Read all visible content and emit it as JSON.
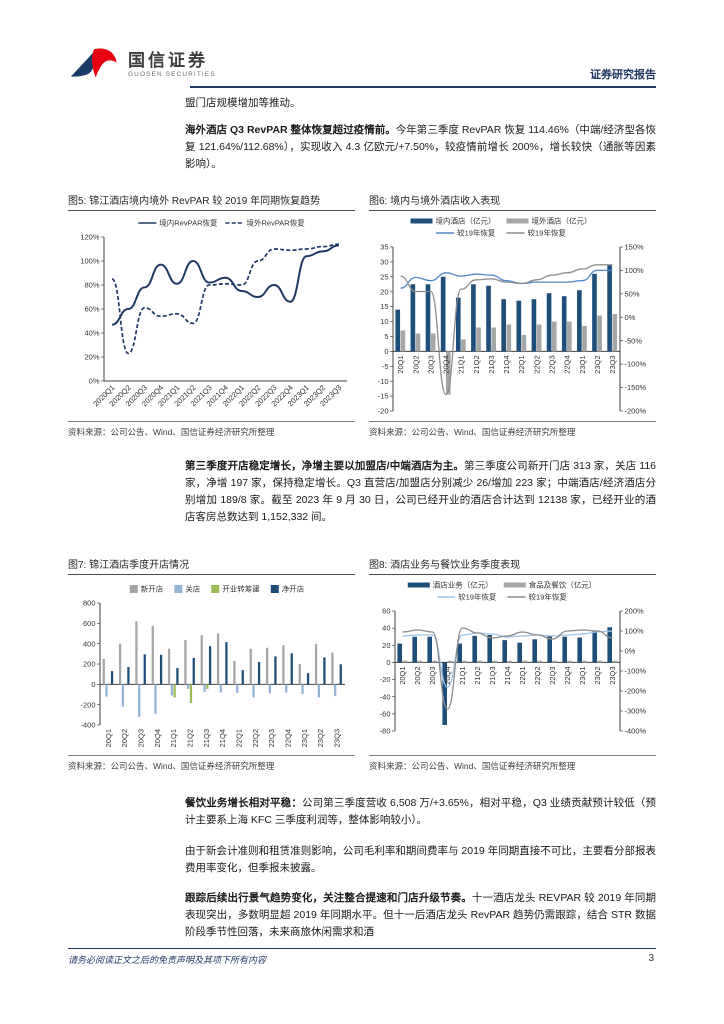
{
  "page": {
    "header": {
      "brand_cn": "国信证券",
      "brand_en": "GUOSEN SECURITIES",
      "report_label": "证券研究报告",
      "brand_navy": "#1B3A66",
      "brand_red": "#E60012"
    },
    "paragraphs": {
      "p1": "盟门店规模增加等推动。",
      "p2_bold": "海外酒店 Q3 RevPAR 整体恢复超过疫情前。",
      "p2_rest": "今年第三季度 RevPAR 恢复 114.46%（中端/经济型各恢复 121.64%/112.68%），实现收入 4.3 亿欧元/+7.50%，较疫情前增长 200%，增长较快（通胀等因素影响）。",
      "p3_bold": "第三季度开店稳定增长，净增主要以加盟店/中端酒店为主。",
      "p3_rest": "第三季度公司新开门店 313 家，关店 116 家，净增 197 家，保持稳定增长。Q3 直营店/加盟店分别减少 26/增加 223 家；中端酒店/经济酒店分别增加 189/8 家。截至 2023 年 9 月 30 日，公司已经开业的酒店合计达到 12138 家，已经开业的酒店客房总数达到 1,152,332 间。",
      "p4_bold": "餐饮业务增长相对平稳：",
      "p4_rest": "公司第三季度营收 6,508 万/+3.65%，相对平稳，Q3 业绩贡献预计较低（预计主要系上海 KFC 三季度利润等，整体影响较小）。",
      "p5": "由于新会计准则和租赁准则影响，公司毛利率和期间费率与 2019 年同期直接不可比，主要看分部报表费用率变化，但季报未披露。",
      "p6_bold": "跟踪后续出行景气趋势变化，关注整合提速和门店升级节奏。",
      "p6_rest": "十一酒店龙头 REVPAR 较 2019 年同期表现突出，多数明显超 2019 年同期水平。但十一后酒店龙头 RevPAR 趋势仍需跟踪，结合 STR 数据阶段季节性回落，未来商旅休闲需求和酒"
    },
    "figures": [
      {
        "title": "图5: 锦江酒店境内境外 RevPAR 较 2019 年同期恢复趋势",
        "source": "资料来源：公司公告、Wind、国信证券经济研究所整理"
      },
      {
        "title": "图6: 境内与境外酒店收入表现",
        "source": "资料来源：公司公告、Wind、国信证券经济研究所整理"
      },
      {
        "title": "图7: 锦江酒店季度开店情况",
        "source": "资料来源：公司公告、Wind、国信证券经济研究所整理"
      },
      {
        "title": "图8: 酒店业务与餐饮业务季度表现",
        "source": "资料来源：公司公告、Wind、国信证券经济研究所整理"
      }
    ],
    "footer": {
      "disclaimer": "请务必阅读正文之后的免责声明及其项下所有内容",
      "page_number": "3"
    }
  },
  "chart_data": [
    {
      "type": "line",
      "title": "锦江酒店境内境外RevPAR较2019年同期恢复趋势",
      "categories": [
        "2020Q1",
        "2020Q2",
        "2020Q3",
        "2020Q4",
        "2021Q1",
        "2021Q2",
        "2021Q3",
        "2021Q4",
        "2022Q1",
        "2022Q2",
        "2022Q3",
        "2022Q4",
        "2023Q1",
        "2023Q2",
        "2023Q3"
      ],
      "left_axis": {
        "min": 0,
        "max": 120,
        "step": 20,
        "ticks": [
          "0%",
          "20%",
          "40%",
          "60%",
          "80%",
          "100%",
          "120%"
        ]
      },
      "series": [
        {
          "name": "境内RevPAR恢复",
          "type": "line",
          "axis": "left",
          "color": "#1F3864",
          "dash": false,
          "w": 2,
          "values": [
            47,
            60,
            78,
            97,
            81,
            100,
            82,
            86,
            75,
            70,
            80,
            66,
            104,
            108,
            113
          ]
        },
        {
          "name": "境外RevPAR恢复",
          "type": "line",
          "axis": "left",
          "color": "#1F3864",
          "dash": true,
          "w": 1.7,
          "values": [
            85,
            23,
            61,
            54,
            56,
            48,
            80,
            81,
            80,
            100,
            110,
            109,
            110,
            112,
            114
          ]
        }
      ],
      "legend_rows": [
        [
          0,
          1
        ]
      ]
    },
    {
      "type": "bar-line-combo",
      "title": "境内与境外酒店收入表现",
      "categories": [
        "20Q1",
        "20Q2",
        "20Q3",
        "20Q4",
        "21Q1",
        "21Q2",
        "21Q3",
        "21Q4",
        "22Q1",
        "22Q2",
        "22Q3",
        "22Q4",
        "23Q1",
        "23Q2",
        "23Q3"
      ],
      "left_axis": {
        "min": -20,
        "max": 35,
        "step": 5,
        "ticks": [
          "-20",
          "-15",
          "-10",
          "-5",
          "0",
          "5",
          "10",
          "15",
          "20",
          "25",
          "30",
          "35"
        ]
      },
      "right_axis": {
        "min": -200,
        "max": 150,
        "step": 50,
        "ticks": [
          "-200%",
          "-150%",
          "-100%",
          "-50%",
          "0%",
          "50%",
          "100%",
          "150%"
        ]
      },
      "series": [
        {
          "name": "境内酒店（亿元）",
          "type": "bar",
          "axis": "left",
          "color": "#1F4E79",
          "values": [
            14,
            22.5,
            22.5,
            25,
            18,
            22.5,
            22,
            17.5,
            17,
            17.5,
            19.5,
            18.5,
            20.5,
            26,
            29
          ]
        },
        {
          "name": "境外酒店（亿元）",
          "type": "bar",
          "axis": "left",
          "color": "#A6A6A6",
          "values": [
            7,
            6,
            6,
            -14.5,
            4,
            8,
            8,
            9,
            5.5,
            9,
            10,
            10,
            8.5,
            12,
            12.5
          ]
        },
        {
          "name": "较19年恢复",
          "type": "line",
          "axis": "right",
          "color": "#4E87C6",
          "dash": false,
          "values": [
            62,
            85,
            78,
            95,
            88,
            92,
            90,
            78,
            72,
            75,
            75,
            75,
            78,
            100,
            100
          ]
        },
        {
          "name": "较19年恢复",
          "type": "line",
          "axis": "right",
          "color": "#8C8C8C",
          "dash": false,
          "values": [
            88,
            55,
            55,
            -165,
            60,
            80,
            82,
            75,
            72,
            80,
            90,
            95,
            103,
            112,
            112
          ]
        }
      ],
      "legend_rows": [
        [
          0,
          1
        ],
        [
          2,
          3
        ]
      ]
    },
    {
      "type": "bar",
      "title": "锦江酒店季度开店情况",
      "categories": [
        "20Q1",
        "20Q2",
        "20Q3",
        "20Q4",
        "21Q1",
        "21Q2",
        "21Q3",
        "21Q4",
        "22Q1",
        "22Q2",
        "22Q3",
        "22Q4",
        "23Q1",
        "23Q2",
        "23Q3"
      ],
      "left_axis": {
        "min": -400,
        "max": 800,
        "step": 200,
        "ticks": [
          "-400",
          "-200",
          "0",
          "200",
          "400",
          "600",
          "800"
        ]
      },
      "series": [
        {
          "name": "新开店",
          "type": "bar",
          "axis": "left",
          "color": "#A6A6A6",
          "values": [
            250,
            400,
            620,
            575,
            350,
            435,
            485,
            500,
            230,
            350,
            360,
            385,
            200,
            395,
            313
          ]
        },
        {
          "name": "关店",
          "type": "bar",
          "axis": "left",
          "color": "#95B3D7",
          "values": [
            -120,
            -220,
            -320,
            -290,
            -110,
            -45,
            -75,
            -80,
            -85,
            -130,
            -90,
            -80,
            -95,
            -130,
            -116
          ]
        },
        {
          "name": "开业转筹建",
          "type": "bar",
          "axis": "left",
          "color": "#9BBB59",
          "values": [
            null,
            null,
            null,
            null,
            -130,
            -185,
            -45,
            null,
            null,
            null,
            null,
            null,
            null,
            null,
            null
          ]
        },
        {
          "name": "净开店",
          "type": "bar",
          "axis": "left",
          "color": "#1F4E79",
          "values": [
            130,
            170,
            295,
            290,
            160,
            260,
            375,
            415,
            140,
            220,
            275,
            305,
            110,
            265,
            197
          ]
        }
      ],
      "legend_rows": [
        [
          0,
          1,
          2,
          3
        ]
      ]
    },
    {
      "type": "bar-line-combo",
      "title": "酒店业务与餐饮业务季度表现",
      "categories": [
        "20Q1",
        "20Q2",
        "20Q3",
        "20Q4",
        "21Q1",
        "21Q2",
        "21Q3",
        "21Q4",
        "22Q1",
        "22Q2",
        "22Q3",
        "22Q4",
        "23Q1",
        "23Q2",
        "23Q3"
      ],
      "left_axis": {
        "min": -80,
        "max": 60,
        "step": 20,
        "ticks": [
          "-80",
          "-60",
          "-40",
          "-20",
          "0",
          "20",
          "40",
          "60"
        ]
      },
      "right_axis": {
        "min": -400,
        "max": 200,
        "step": 100,
        "ticks": [
          "-400%",
          "-300%",
          "-200%",
          "-100%",
          "0%",
          "100%",
          "200%"
        ]
      },
      "series": [
        {
          "name": "酒店业务（亿元）",
          "type": "bar",
          "axis": "left",
          "color": "#1F4E79",
          "values": [
            22,
            30,
            30,
            -73,
            22,
            31,
            32,
            26,
            23,
            27,
            31,
            30,
            29,
            37,
            41
          ]
        },
        {
          "name": "食品及餐饮（亿元）",
          "type": "bar",
          "axis": "left",
          "color": "#A6A6A6",
          "values": [
            2,
            2,
            2,
            2,
            2,
            2,
            2,
            2,
            2,
            2,
            2,
            2,
            2,
            2,
            2
          ]
        },
        {
          "name": "较19年恢复",
          "type": "line",
          "axis": "right",
          "color": "#9DC3E6",
          "dash": false,
          "values": [
            75,
            80,
            80,
            -180,
            80,
            90,
            85,
            70,
            75,
            80,
            75,
            80,
            85,
            95,
            100
          ]
        },
        {
          "name": "较19年恢复",
          "type": "line",
          "axis": "right",
          "color": "#8C8C8C",
          "dash": false,
          "values": [
            95,
            105,
            95,
            -290,
            115,
            90,
            65,
            75,
            95,
            80,
            60,
            100,
            105,
            100,
            65
          ]
        }
      ],
      "legend_rows": [
        [
          0,
          1
        ],
        [
          2,
          3
        ]
      ]
    }
  ]
}
